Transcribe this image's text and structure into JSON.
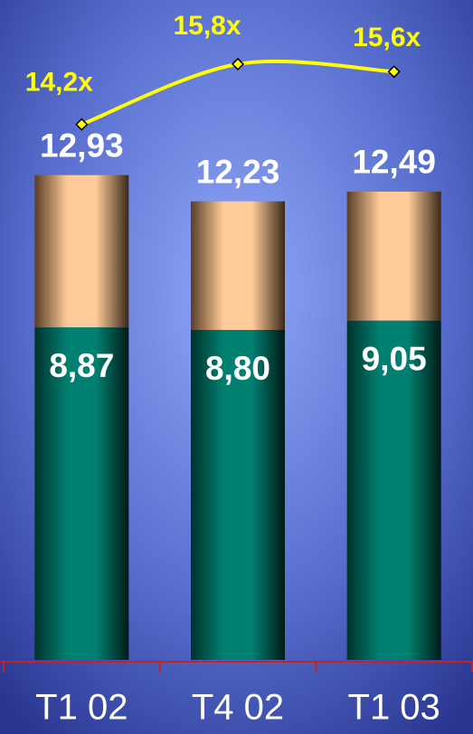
{
  "chart_data": {
    "type": "bar",
    "stacked": true,
    "categories": [
      "T1 02",
      "T4 02",
      "T1 03"
    ],
    "series": [
      {
        "color": "#008070",
        "values": [
          8.87,
          8.8,
          9.05
        ],
        "value_labels": [
          "8,87",
          "8,80",
          "9,05"
        ]
      },
      {
        "color": "#ffcc99",
        "values": [
          4.06,
          3.43,
          3.44
        ]
      },
      {
        "type": "line",
        "axis": "y2",
        "color": "#ffff00",
        "values": [
          14.2,
          15.8,
          15.6
        ],
        "value_labels": [
          "14,2x",
          "15,8x",
          "15,6x"
        ]
      }
    ],
    "totals": [
      12.93,
      12.23,
      12.49
    ],
    "total_labels": [
      "12,93",
      "12,23",
      "12,49"
    ],
    "ylim": [
      0,
      17.6
    ],
    "y2lim": [
      0,
      17.5
    ],
    "axis_color": "#cc2020"
  }
}
